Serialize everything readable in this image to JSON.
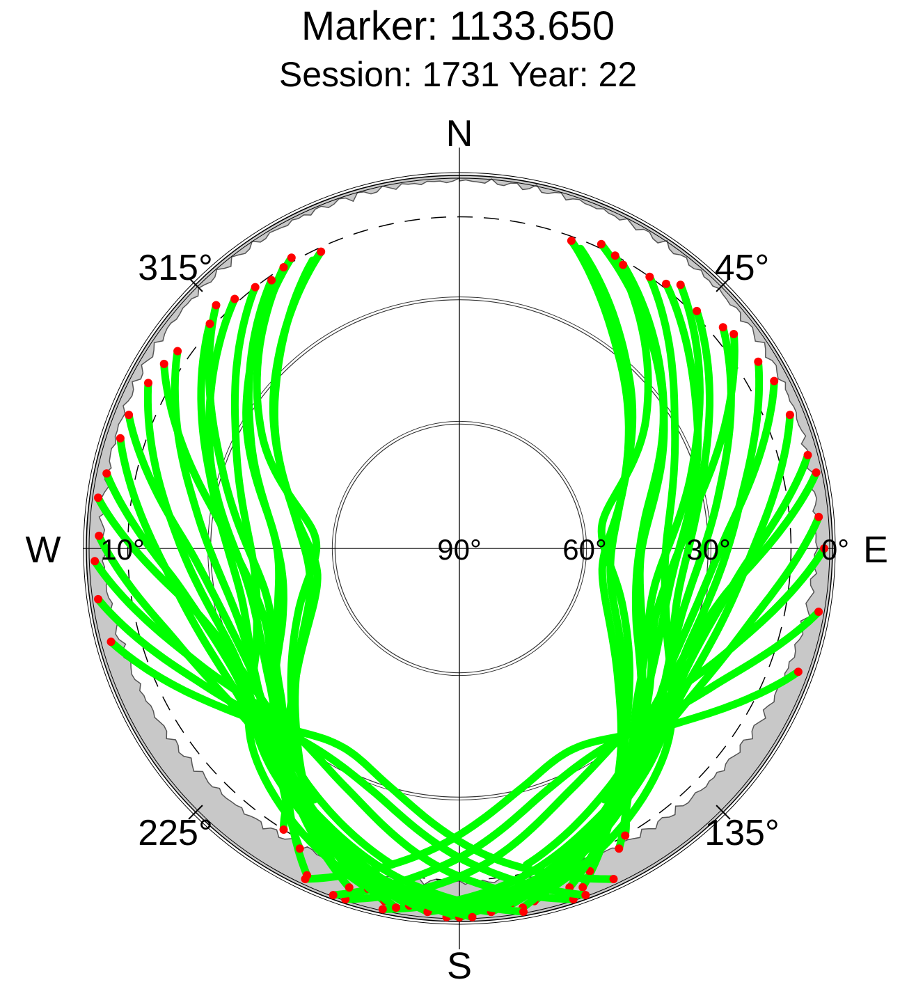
{
  "title": "Marker: 1133.650",
  "subtitle": "Session: 1731 Year: 22",
  "colors": {
    "track": "#00ff00",
    "track_end": "#ff0000",
    "mask": "#c8c8c8",
    "grid": "#000000"
  },
  "chart_data": {
    "type": "scatter",
    "projection": "polar skyplot (azimuth clockwise from north, elevation 0° at rim to 90° at center)",
    "cardinal_labels": {
      "north": "N",
      "east": "E",
      "south": "S",
      "west": "W"
    },
    "azimuth_tick_labels": [
      "45°",
      "135°",
      "225°",
      "315°"
    ],
    "elevation_tick_labels": [
      "0°",
      "30°",
      "60°",
      "90°",
      "10°"
    ],
    "elevation_rings": [
      0,
      30,
      60
    ],
    "elevation_cutoff_dashed": 10,
    "grid": true,
    "legend": "none",
    "tracks": [
      {
        "az": [
          20,
          40,
          70,
          100,
          130,
          160
        ],
        "el": [
          11,
          30,
          48,
          55,
          40,
          3
        ]
      },
      {
        "az": [
          22,
          45,
          75,
          105,
          135,
          158
        ],
        "el": [
          12,
          32,
          50,
          52,
          34,
          6
        ]
      },
      {
        "az": [
          25,
          52,
          82,
          112,
          140,
          152
        ],
        "el": [
          9,
          28,
          45,
          44,
          24,
          8
        ]
      },
      {
        "az": [
          28,
          55,
          80,
          110,
          138,
          150
        ],
        "el": [
          10,
          35,
          55,
          48,
          30,
          10
        ]
      },
      {
        "az": [
          30,
          60,
          90,
          118,
          143,
          162
        ],
        "el": [
          11,
          33,
          46,
          40,
          22,
          4
        ]
      },
      {
        "az": [
          35,
          60,
          88,
          112,
          135,
          165
        ],
        "el": [
          10,
          30,
          40,
          36,
          20,
          5
        ]
      },
      {
        "az": [
          38,
          62,
          95,
          125,
          148,
          168
        ],
        "el": [
          9,
          25,
          38,
          34,
          18,
          3
        ]
      },
      {
        "az": [
          40,
          70,
          100,
          128,
          146,
          170
        ],
        "el": [
          7,
          30,
          42,
          35,
          20,
          2
        ]
      },
      {
        "az": [
          45,
          72,
          98,
          120,
          140,
          172
        ],
        "el": [
          9,
          28,
          36,
          32,
          22,
          3
        ]
      },
      {
        "az": [
          50,
          78,
          105,
          130,
          150,
          175
        ],
        "el": [
          7,
          26,
          34,
          28,
          15,
          2
        ]
      },
      {
        "az": [
          52,
          80,
          108,
          132,
          150
        ],
        "el": [
          6,
          32,
          40,
          30,
          20
        ]
      },
      {
        "az": [
          58,
          82,
          112,
          135,
          155,
          178
        ],
        "el": [
          5,
          22,
          30,
          24,
          13,
          2
        ]
      },
      {
        "az": [
          62,
          88,
          116,
          140,
          160,
          180
        ],
        "el": [
          4,
          26,
          32,
          24,
          12,
          1
        ]
      },
      {
        "az": [
          68,
          92,
          120,
          142,
          162,
          182
        ],
        "el": [
          4,
          20,
          26,
          20,
          10,
          1
        ]
      },
      {
        "az": [
          75,
          95,
          118,
          140,
          162,
          185
        ],
        "el": [
          3,
          22,
          28,
          20,
          10,
          2
        ]
      },
      {
        "az": [
          78,
          100,
          125,
          148,
          168
        ],
        "el": [
          2,
          25,
          30,
          22,
          12
        ]
      },
      {
        "az": [
          85,
          105,
          128,
          150,
          170,
          192
        ],
        "el": [
          3,
          18,
          24,
          18,
          9,
          1
        ]
      },
      {
        "az": [
          90,
          110,
          132,
          155,
          178,
          198
        ],
        "el": [
          2,
          20,
          30,
          26,
          12,
          1
        ]
      },
      {
        "az": [
          100,
          118,
          140,
          160,
          182,
          200
        ],
        "el": [
          2,
          20,
          30,
          28,
          14,
          1
        ]
      },
      {
        "az": [
          110,
          128,
          148,
          166,
          188,
          205
        ],
        "el": [
          3,
          22,
          34,
          30,
          15,
          2
        ]
      },
      {
        "az": [
          335,
          312,
          285,
          258,
          232,
          205
        ],
        "el": [
          11,
          30,
          48,
          55,
          40,
          3
        ]
      },
      {
        "az": [
          333,
          310,
          280,
          252,
          225,
          200
        ],
        "el": [
          12,
          32,
          50,
          52,
          34,
          6
        ]
      },
      {
        "az": [
          330,
          304,
          275,
          248,
          222,
          208
        ],
        "el": [
          9,
          28,
          45,
          44,
          24,
          8
        ]
      },
      {
        "az": [
          328,
          300,
          275,
          248,
          222,
          212
        ],
        "el": [
          10,
          35,
          55,
          48,
          30,
          10
        ]
      },
      {
        "az": [
          325,
          298,
          270,
          242,
          218,
          198
        ],
        "el": [
          11,
          33,
          46,
          40,
          22,
          4
        ]
      },
      {
        "az": [
          322,
          296,
          268,
          245,
          225,
          195
        ],
        "el": [
          10,
          30,
          40,
          36,
          20,
          5
        ]
      },
      {
        "az": [
          318,
          292,
          262,
          235,
          212,
          192
        ],
        "el": [
          9,
          25,
          38,
          34,
          18,
          3
        ]
      },
      {
        "az": [
          315,
          288,
          258,
          232,
          214,
          190
        ],
        "el": [
          7,
          30,
          42,
          35,
          20,
          2
        ]
      },
      {
        "az": [
          312,
          285,
          260,
          238,
          220,
          188
        ],
        "el": [
          9,
          28,
          36,
          32,
          22,
          3
        ]
      },
      {
        "az": [
          305,
          278,
          252,
          228,
          208,
          185
        ],
        "el": [
          7,
          26,
          34,
          28,
          15,
          2
        ]
      },
      {
        "az": [
          302,
          276,
          250,
          226,
          210
        ],
        "el": [
          6,
          32,
          40,
          30,
          20
        ]
      },
      {
        "az": [
          298,
          272,
          246,
          224,
          204,
          182
        ],
        "el": [
          5,
          22,
          30,
          24,
          13,
          2
        ]
      },
      {
        "az": [
          292,
          268,
          242,
          220,
          200,
          180
        ],
        "el": [
          4,
          26,
          32,
          24,
          12,
          1
        ]
      },
      {
        "az": [
          288,
          264,
          238,
          218,
          198,
          178
        ],
        "el": [
          4,
          20,
          26,
          20,
          10,
          1
        ]
      },
      {
        "az": [
          282,
          262,
          240,
          220,
          198,
          175
        ],
        "el": [
          3,
          22,
          28,
          20,
          10,
          2
        ]
      },
      {
        "az": [
          278,
          256,
          232,
          212,
          192
        ],
        "el": [
          2,
          25,
          30,
          22,
          12
        ]
      },
      {
        "az": [
          272,
          252,
          230,
          210,
          190,
          170
        ],
        "el": [
          3,
          18,
          24,
          18,
          9,
          1
        ]
      },
      {
        "az": [
          268,
          248,
          226,
          205,
          182,
          162
        ],
        "el": [
          2,
          20,
          30,
          26,
          12,
          1
        ]
      },
      {
        "az": [
          262,
          242,
          220,
          200,
          178,
          160
        ],
        "el": [
          2,
          20,
          30,
          28,
          14,
          1
        ]
      },
      {
        "az": [
          255,
          235,
          214,
          196,
          174,
          155
        ],
        "el": [
          3,
          22,
          34,
          30,
          15,
          2
        ]
      }
    ]
  }
}
